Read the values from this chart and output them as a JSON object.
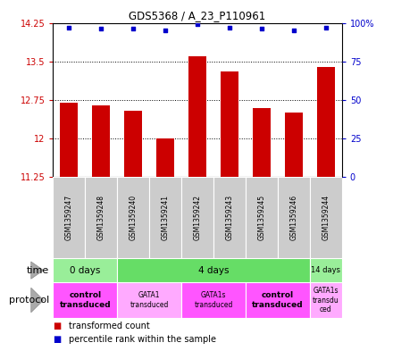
{
  "title": "GDS5368 / A_23_P110961",
  "samples": [
    "GSM1359247",
    "GSM1359248",
    "GSM1359240",
    "GSM1359241",
    "GSM1359242",
    "GSM1359243",
    "GSM1359245",
    "GSM1359246",
    "GSM1359244"
  ],
  "bar_values": [
    12.7,
    12.65,
    12.55,
    12.0,
    13.6,
    13.3,
    12.6,
    12.5,
    13.4
  ],
  "blue_values": [
    97,
    96,
    96,
    95,
    99,
    97,
    96,
    95,
    97
  ],
  "ylim": [
    11.25,
    14.25
  ],
  "yticks": [
    11.25,
    12.0,
    12.75,
    13.5,
    14.25
  ],
  "ytick_labels": [
    "11.25",
    "12",
    "12.75",
    "13.5",
    "14.25"
  ],
  "y2ticks": [
    0,
    25,
    50,
    75,
    100
  ],
  "y2tick_labels": [
    "0",
    "25",
    "50",
    "75",
    "100%"
  ],
  "bar_color": "#cc0000",
  "blue_color": "#0000cc",
  "bar_bottom": 11.25,
  "time_groups": [
    {
      "label": "0 days",
      "start": 0,
      "end": 2,
      "color": "#99ee99"
    },
    {
      "label": "4 days",
      "start": 2,
      "end": 8,
      "color": "#66dd66"
    },
    {
      "label": "14 days",
      "start": 8,
      "end": 9,
      "color": "#99ee99"
    }
  ],
  "protocol_groups": [
    {
      "label": "control\ntransduced",
      "start": 0,
      "end": 2,
      "color": "#ff55ff",
      "bold": true
    },
    {
      "label": "GATA1\ntransduced",
      "start": 2,
      "end": 4,
      "color": "#ffaaff",
      "bold": false
    },
    {
      "label": "GATA1s\ntransduced",
      "start": 4,
      "end": 6,
      "color": "#ff55ff",
      "bold": false
    },
    {
      "label": "control\ntransduced",
      "start": 6,
      "end": 8,
      "color": "#ff55ff",
      "bold": true
    },
    {
      "label": "GATA1s\ntransdu\nced",
      "start": 8,
      "end": 9,
      "color": "#ffaaff",
      "bold": false
    }
  ],
  "sample_bg": "#cccccc",
  "legend_items": [
    {
      "color": "#cc0000",
      "label": "transformed count"
    },
    {
      "color": "#0000cc",
      "label": "percentile rank within the sample"
    }
  ]
}
